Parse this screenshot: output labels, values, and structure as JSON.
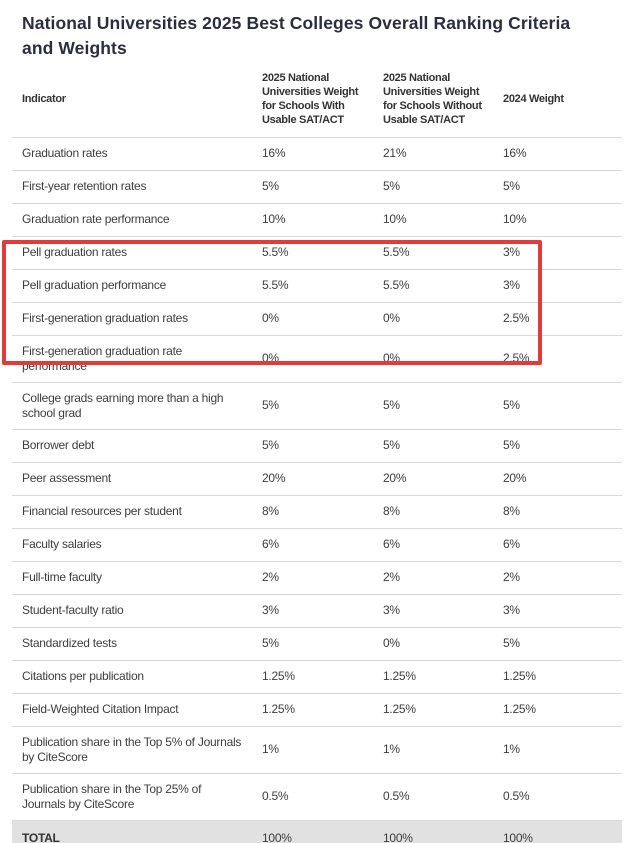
{
  "chart_data": {
    "type": "table",
    "title": "National Universities 2025 Best Colleges Overall Ranking Criteria and Weights",
    "title_lines": [
      "National Universities 2025 Best Colleges Overall Ranking Criteria",
      "and Weights"
    ],
    "columns": [
      "Indicator",
      "2025 National\nUniversities Weight\nfor Schools With\nUsable SAT/ACT",
      "2025 National\nUniversities Weight\nfor Schools Without\nUsable SAT/ACT",
      "2024 Weight"
    ],
    "rows": [
      [
        "Graduation rates",
        "16%",
        "21%",
        "16%"
      ],
      [
        "First-year retention rates",
        "5%",
        "5%",
        "5%"
      ],
      [
        "Graduation rate performance",
        "10%",
        "10%",
        "10%"
      ],
      [
        "Pell graduation rates",
        "5.5%",
        "5.5%",
        "3%"
      ],
      [
        "Pell graduation performance",
        "5.5%",
        "5.5%",
        "3%"
      ],
      [
        "First-generation graduation rates",
        "0%",
        "0%",
        "2.5%"
      ],
      [
        "First-generation graduation rate performance",
        "0%",
        "0%",
        "2.5%"
      ],
      [
        "College grads earning more than a high school grad",
        "5%",
        "5%",
        "5%"
      ],
      [
        "Borrower debt",
        "5%",
        "5%",
        "5%"
      ],
      [
        "Peer assessment",
        "20%",
        "20%",
        "20%"
      ],
      [
        "Financial resources per student",
        "8%",
        "8%",
        "8%"
      ],
      [
        "Faculty salaries",
        "6%",
        "6%",
        "6%"
      ],
      [
        "Full-time faculty",
        "2%",
        "2%",
        "2%"
      ],
      [
        "Student-faculty ratio",
        "3%",
        "3%",
        "3%"
      ],
      [
        "Standardized tests",
        "5%",
        "0%",
        "5%"
      ],
      [
        "Citations per publication",
        "1.25%",
        "1.25%",
        "1.25%"
      ],
      [
        "Field-Weighted Citation Impact",
        "1.25%",
        "1.25%",
        "1.25%"
      ],
      [
        "Publication share in the Top 5% of Journals by CiteScore",
        "1%",
        "1%",
        "1%"
      ],
      [
        "Publication share in the Top 25% of Journals by CiteScore",
        "0.5%",
        "0.5%",
        "0.5%"
      ]
    ],
    "total_row": [
      "TOTAL",
      "100%",
      "100%",
      "100%"
    ],
    "highlight": {
      "rows_highlighted": [
        "Pell graduation rates",
        "Pell graduation performance",
        "First-generation graduation rates",
        "First-generation graduation rate performance"
      ],
      "color": "#e23b3b"
    },
    "colors": {
      "title_text": "#2b2e3e",
      "body_text": "#3d3d3d",
      "divider": "#d9d9d9",
      "total_row_bg": "#e1e1e1"
    },
    "layout_hints": {
      "grid": "horizontal row dividers only",
      "legend": "none"
    }
  }
}
